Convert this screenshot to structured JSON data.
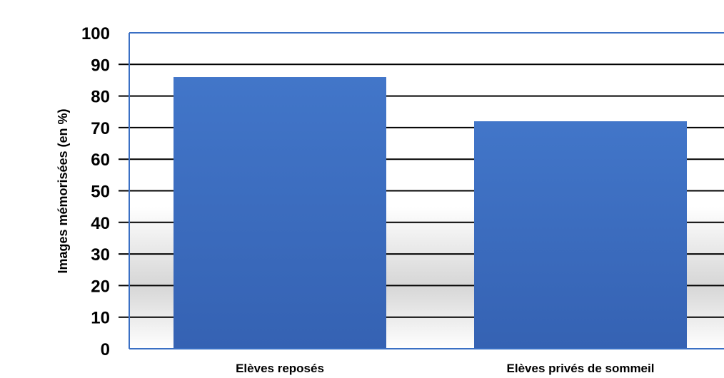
{
  "chart_data": {
    "type": "bar",
    "categories": [
      "Elèves reposés",
      "Elèves privés de sommeil"
    ],
    "values": [
      86,
      72
    ],
    "title": "",
    "xlabel": "",
    "ylabel": "Images mémorisées (en %)",
    "ylim": [
      0,
      100
    ],
    "yticks": [
      0,
      10,
      20,
      30,
      40,
      50,
      60,
      70,
      80,
      90,
      100
    ],
    "grid": true,
    "legend": "none",
    "bar_color": "#3d70c4",
    "gridline_color": "#000000",
    "frame_color": "#3a6fc4"
  }
}
